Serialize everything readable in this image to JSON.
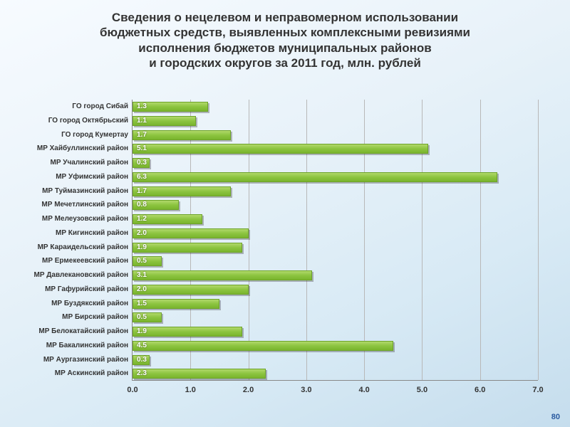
{
  "title_lines": [
    "Сведения о нецелевом и неправомерном использовании",
    "бюджетных средств, выявленных комплексными ревизиями",
    "исполнения бюджетов муниципальных районов",
    "и городских округов за 2011 год, млн. рублей"
  ],
  "page_number": "80",
  "chart": {
    "type": "bar-horizontal",
    "x_min": 0.0,
    "x_max": 7.0,
    "x_tick_step": 1.0,
    "x_tick_labels": [
      "0.0",
      "1.0",
      "2.0",
      "3.0",
      "4.0",
      "5.0",
      "6.0",
      "7.0"
    ],
    "bar_color_top": "#b0d86a",
    "bar_color_bottom": "#79b42d",
    "bar_border": "#6da328",
    "shadow_color": "rgba(60,60,60,0.35)",
    "grid_color": "#b8b8b8",
    "axis_color": "#888888",
    "background_gradient": [
      "#f7fbff",
      "#e8f2f9",
      "#d8eaf5",
      "#c5dded"
    ],
    "value_label_color": "#ffffff",
    "category_label_fontsize": 10,
    "value_label_fontsize": 10,
    "title_fontsize": 17,
    "categories": [
      "ГО город Сибай",
      "ГО город  Октябрьский",
      "ГО город Кумертау",
      "МР Хайбуллинский район",
      "МР Учалинский район",
      "МР Уфимский район",
      "МР Туймазинский район",
      "МР Мечетлинский район",
      "МР Мелеузовский район",
      "МР Кигинский район",
      "МР Караидельский район",
      "МР Ермекеевский район",
      "МР Давлекановский район",
      "МР Гафурийский район",
      "МР Буздякский район",
      "МР Бирский район",
      "МР Белокатайский район",
      "МР Бакалинский район",
      "МР Аургазинский район",
      "МР Аскинский район"
    ],
    "values": [
      1.3,
      1.1,
      1.7,
      5.1,
      0.3,
      6.3,
      1.7,
      0.8,
      1.2,
      2.0,
      1.9,
      0.5,
      3.1,
      2.0,
      1.5,
      0.5,
      1.9,
      4.5,
      0.3,
      2.3
    ],
    "value_labels": [
      "1.3",
      "1.1",
      "1.7",
      "5.1",
      "0.3",
      "6.3",
      "1.7",
      "0.8",
      "1.2",
      "2.0",
      "1.9",
      "0.5",
      "3.1",
      "2.0",
      "1.5",
      "0.5",
      "1.9",
      "4.5",
      "0.3",
      "2.3"
    ]
  }
}
